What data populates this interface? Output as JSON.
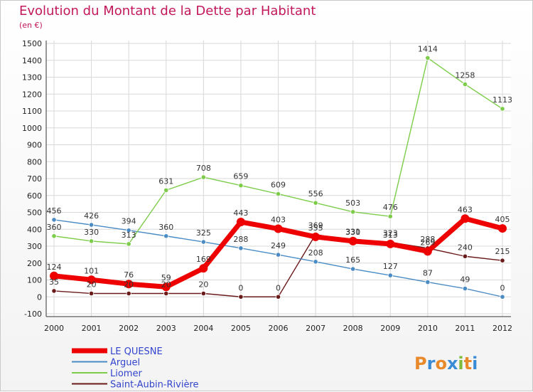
{
  "header": {
    "title": "Evolution du Montant de la Dette par Habitant",
    "unit": "(en €)"
  },
  "chart_data": {
    "type": "line",
    "x": [
      "2000",
      "2001",
      "2002",
      "2003",
      "2004",
      "2005",
      "2006",
      "2007",
      "2008",
      "2009",
      "2010",
      "2011",
      "2012"
    ],
    "ylim": [
      -100,
      1500
    ],
    "yticks": [
      -100,
      0,
      100,
      200,
      300,
      400,
      500,
      600,
      700,
      800,
      900,
      1000,
      1100,
      1200,
      1300,
      1400,
      1500
    ],
    "grid": true,
    "legend_position": "bottom-left",
    "series": [
      {
        "name": "Saint-Aubin-Rivière",
        "color": "#6b1a1a",
        "values": [
          35,
          20,
          20,
          20,
          20,
          0,
          0,
          369,
          331,
          323,
          288,
          240,
          215
        ]
      },
      {
        "name": "Arguel",
        "color": "#4a8bc4",
        "values": [
          456,
          426,
          394,
          360,
          325,
          288,
          249,
          208,
          165,
          127,
          87,
          49,
          0
        ]
      },
      {
        "name": "Liomer",
        "color": "#7dcc4a",
        "values": [
          360,
          330,
          313,
          631,
          708,
          659,
          609,
          556,
          503,
          476,
          1414,
          1258,
          1113
        ]
      },
      {
        "name": "LE QUESNE",
        "color": "#ee0000",
        "values": [
          124,
          101,
          76,
          59,
          169,
          443,
          403,
          355,
          330,
          313,
          269,
          463,
          405
        ]
      }
    ]
  },
  "logo": {
    "text": "Proxiti"
  }
}
